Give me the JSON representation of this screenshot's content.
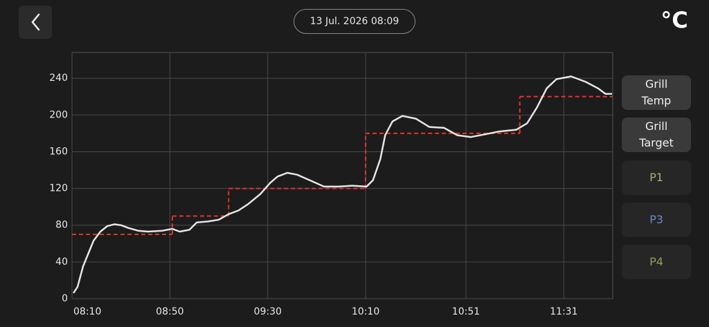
{
  "header": {
    "date": "13 Jul. 2026 08:09",
    "unit": "°C"
  },
  "chart_data": {
    "type": "line",
    "xlim": [
      490,
      711
    ],
    "xticks": [
      {
        "value": 490,
        "label": "08:10"
      },
      {
        "value": 530,
        "label": "08:50"
      },
      {
        "value": 570,
        "label": "09:30"
      },
      {
        "value": 610,
        "label": "10:10"
      },
      {
        "value": 651,
        "label": "10:51"
      },
      {
        "value": 691,
        "label": "11:31"
      }
    ],
    "ylim": [
      0,
      268
    ],
    "yticks": [
      0,
      40,
      80,
      120,
      160,
      200,
      240
    ],
    "grid": true,
    "series": [
      {
        "name": "Grill Temp",
        "color": "#e6e6e6",
        "style": "solid",
        "x": [
          490.6,
          492.3,
          494.5,
          496.8,
          498.8,
          501.6,
          504.4,
          507.3,
          510,
          513,
          517,
          521,
          527,
          531,
          534,
          538,
          541,
          545.5,
          550,
          554,
          558,
          562,
          567,
          571,
          574,
          578,
          582,
          588,
          593,
          599,
          604.5,
          610.4,
          613,
          616,
          618,
          621,
          625,
          630.5,
          636,
          642,
          647.5,
          653,
          659,
          664.5,
          671.6,
          676,
          680,
          684,
          688,
          694,
          700,
          705,
          708,
          710.7
        ],
        "values": [
          6,
          13,
          35,
          50,
          63,
          73,
          79,
          81,
          80,
          77,
          74,
          73,
          74,
          76,
          73,
          75,
          83,
          84,
          86,
          92,
          96,
          103,
          114,
          126,
          133,
          137,
          135,
          128,
          122,
          122,
          123,
          122,
          129,
          152,
          178,
          193,
          199,
          196,
          187,
          186,
          178,
          176,
          179,
          182,
          184,
          191,
          208,
          229,
          239,
          242,
          236,
          229,
          223,
          223
        ]
      },
      {
        "name": "Grill Target",
        "color": "#e0352b",
        "style": "step",
        "x": [
          490,
          531,
          554,
          610,
          673
        ],
        "values": [
          70,
          90,
          120,
          180,
          220
        ]
      }
    ],
    "probes": [
      {
        "name": "P1",
        "color": "#b3a878"
      },
      {
        "name": "P3",
        "color": "#7088c4"
      },
      {
        "name": "P4",
        "color": "#9a9a5a"
      }
    ]
  }
}
